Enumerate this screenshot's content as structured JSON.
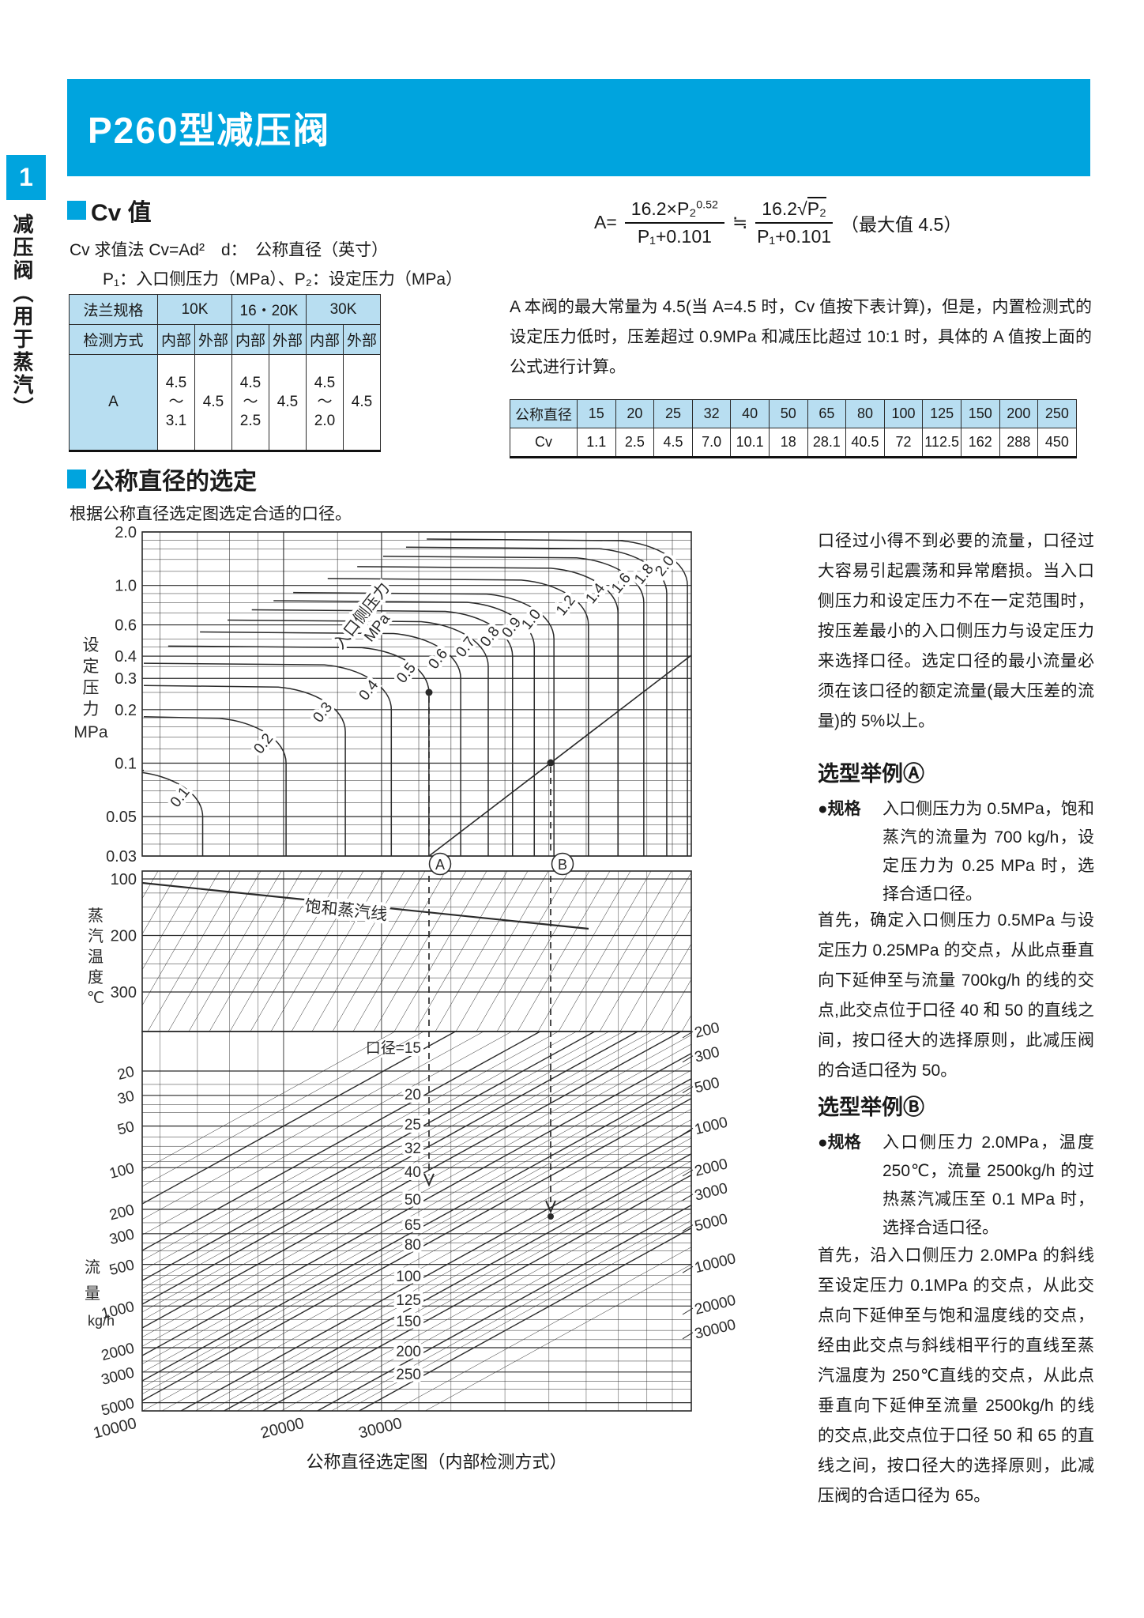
{
  "page": {
    "side_tab_number": "1",
    "side_title": "减压阀（用于蒸汽）",
    "banner_title": "P260型减压阀"
  },
  "cv_section": {
    "heading": "Cv 值",
    "line1": "Cv 求值法  Cv=Ad²　d：　公称直径（英寸）",
    "line2": "P₁：入口侧压力（MPa）、P₂：设定压力（MPa）",
    "formula": {
      "lhs": "A=",
      "num1": "16.2×P₂",
      "num1_sup": "0.52",
      "den1": "P₁+0.101",
      "approx": "≒",
      "num2_pre": "16.2",
      "num2_rad": "√",
      "num2_radend": "P₂",
      "den2": "P₁+0.101",
      "note": "（最大值 4.5）"
    },
    "flange_table": {
      "r1": [
        "法兰规格",
        "10K",
        "16・20K",
        "30K"
      ],
      "r2": [
        "检测方式",
        "内部",
        "外部",
        "内部",
        "外部",
        "内部",
        "外部"
      ],
      "r3": [
        "A",
        "4.5\n〜\n3.1",
        "4.5",
        "4.5\n〜\n2.5",
        "4.5",
        "4.5\n〜\n2.0",
        "4.5"
      ]
    },
    "note_paragraph": "A 本阀的最大常量为 4.5(当 A=4.5 时，Cv 值按下表计算)，但是，内置检测式的设定压力低时，压差超过 0.9MPa 和减压比超过 10:1 时，具体的 A 值按上面的公式进行计算。",
    "cv_table": {
      "row1_label": "公称直径",
      "row2_label": "Cv",
      "sizes": [
        "15",
        "20",
        "25",
        "32",
        "40",
        "50",
        "65",
        "80",
        "100",
        "125",
        "150",
        "200",
        "250"
      ],
      "values": [
        "1.1",
        "2.5",
        "4.5",
        "7.0",
        "10.1",
        "18",
        "28.1",
        "40.5",
        "72",
        "112.5",
        "162",
        "288",
        "450"
      ]
    }
  },
  "selection_section": {
    "heading": "公称直径的选定",
    "subtitle": "根据公称直径选定图选定合适的口径。",
    "caption": "公称直径选定图（内部检测方式）",
    "right_paragraph": "口径过小得不到必要的流量，口径过大容易引起震荡和异常磨损。当入口侧压力和设定压力不在一定范围时，按压差最小的入口侧压力与设定压力来选择口径。选定口径的最小流量必须在该口径的额定流量(最大压差的流量)的 5%以上。",
    "example_a": {
      "heading": "选型举例Ⓐ",
      "spec_label": "●规格",
      "spec": "入口侧压力为 0.5MPa，饱和蒸汽的流量为 700 kg/h，设定压力为 0.25 MPa 时，选择合适口径。",
      "body": "首先，确定入口侧压力 0.5MPa 与设定压力 0.25MPa 的交点，从此点垂直向下延伸至与流量 700kg/h 的线的交点,此交点位于口径 40 和 50 的直线之间，按口径大的选择原则，此减压阀的合适口径为 50。"
    },
    "example_b": {
      "heading": "选型举例Ⓑ",
      "spec_label": "●规格",
      "spec": "入口侧压力 2.0MPa，温度 250℃，流量 2500kg/h 的过热蒸汽减压至 0.1 MPa 时，选择合适口径。",
      "body": "首先，沿入口侧压力 2.0MPa 的斜线至设定压力 0.1MPa 的交点，从此交点向下延伸至与饱和温度线的交点，经由此交点与斜线相平行的直线至蒸汽温度为 250℃直线的交点，从此点垂直向下延伸至流量 2500kg/h 的线的交点,此交点位于口径 50 和 65 的直线之间，按口径大的选择原则，此减压阀的合适口径为 65。"
    }
  },
  "colors": {
    "brand_blue": "#00a4de",
    "table_header_blue": "#b8def1",
    "ink": "#2a2a2a"
  },
  "chart_data": {
    "type": "nomograph",
    "title": "公称直径选定图（内部检测方式）",
    "set_pressure_axis": {
      "label": "设定压力",
      "unit": "MPa",
      "ticks": [
        "2.0",
        "1.0",
        "0.6",
        "0.4",
        "0.3",
        "0.2",
        "0.1",
        "0.05",
        "0.03"
      ]
    },
    "inlet_pressure_curves": {
      "label": "入口侧压力",
      "unit": "MPa",
      "values": [
        0.1,
        0.2,
        0.3,
        0.4,
        0.5,
        0.6,
        0.7,
        0.8,
        0.9,
        1.0,
        1.2,
        1.4,
        1.6,
        1.8,
        2.0
      ]
    },
    "temperature_axis": {
      "label": "蒸汽温度",
      "unit": "℃",
      "ticks": [
        100,
        200,
        300
      ]
    },
    "saturated_steam_label": "饱和蒸汽线",
    "flow_axis": {
      "label": "流量",
      "unit": "kg/h",
      "left_ticks": [
        20,
        30,
        50,
        100,
        200,
        300,
        500,
        1000,
        2000,
        3000,
        5000
      ],
      "bottom_ticks": [
        10000,
        20000,
        30000
      ],
      "right_ticks": [
        200,
        300,
        500,
        1000,
        2000,
        3000,
        5000,
        10000,
        20000,
        30000
      ]
    },
    "diameter_lines": {
      "label_prefix": "口径=",
      "values": [
        15,
        20,
        25,
        32,
        40,
        50,
        65,
        80,
        100,
        125,
        150,
        200,
        250
      ]
    },
    "example_markers": [
      "A",
      "B"
    ]
  }
}
